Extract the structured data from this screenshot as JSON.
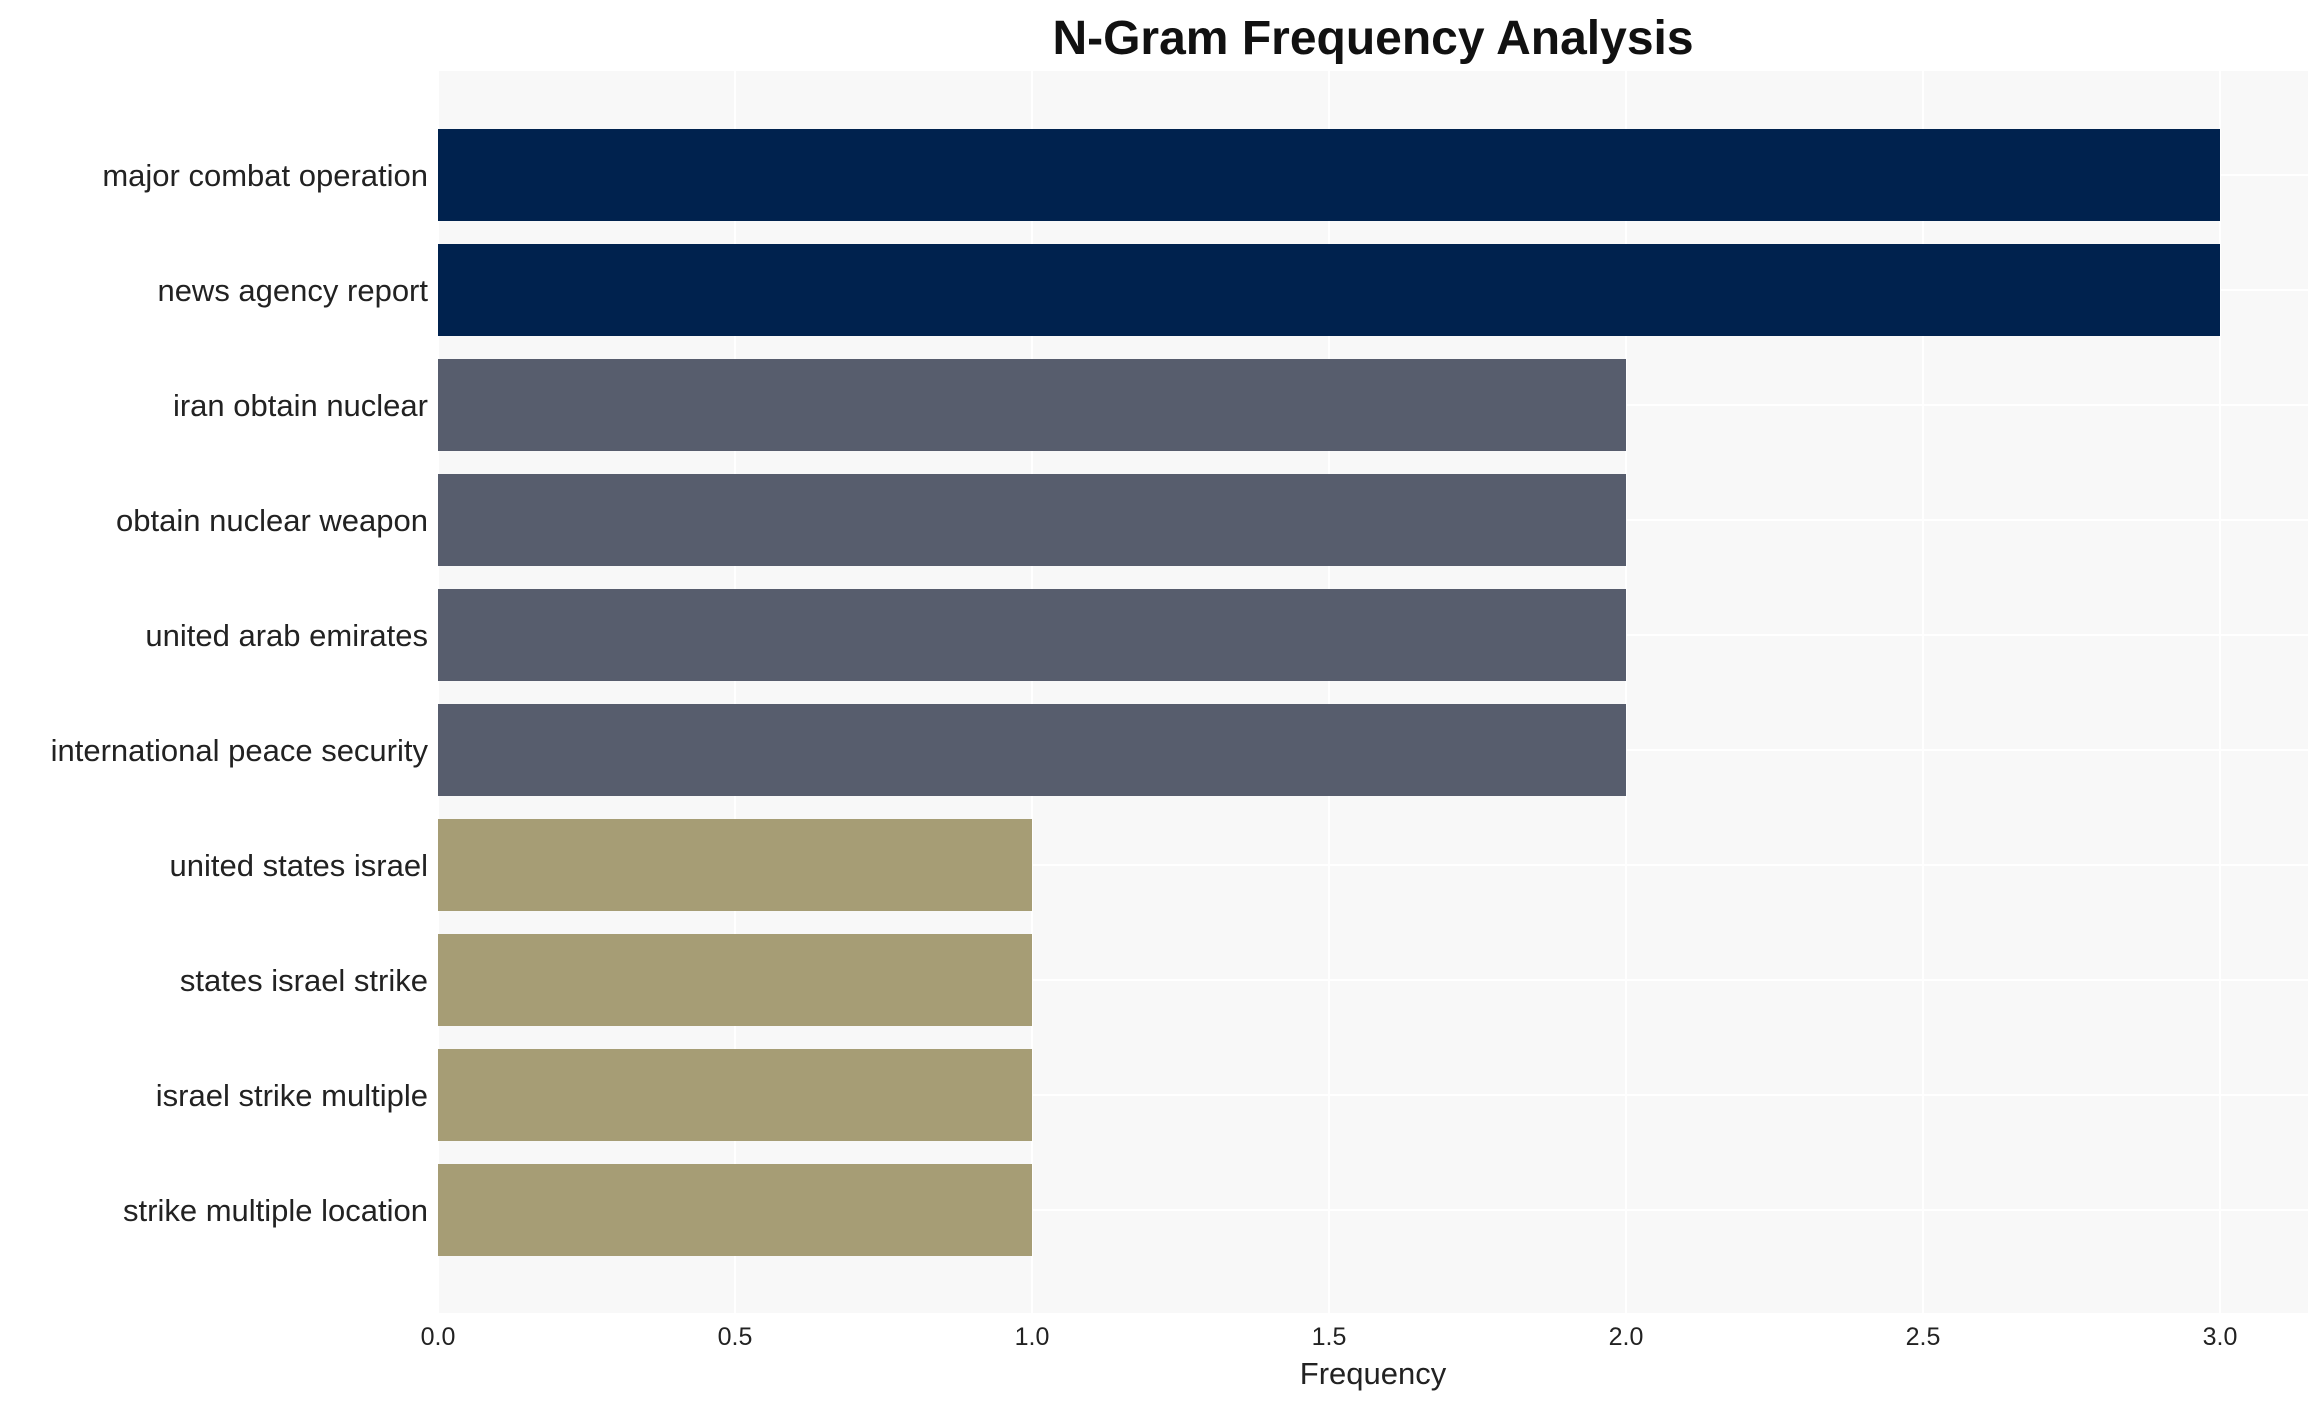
{
  "chart_data": {
    "type": "bar",
    "orientation": "horizontal",
    "title": "N-Gram Frequency Analysis",
    "xlabel": "Frequency",
    "ylabel": "",
    "xlim": [
      0,
      3.15
    ],
    "xticks": [
      "0.0",
      "0.5",
      "1.0",
      "1.5",
      "2.0",
      "2.5",
      "3.0"
    ],
    "grid": true,
    "categories": [
      "major combat operation",
      "news agency report",
      "iran obtain nuclear",
      "obtain nuclear weapon",
      "united arab emirates",
      "international peace security",
      "united states israel",
      "states israel strike",
      "israel strike multiple",
      "strike multiple location"
    ],
    "values": [
      3,
      3,
      2,
      2,
      2,
      2,
      1,
      1,
      1,
      1
    ],
    "colors": {
      "3": "#00224e",
      "2": "#575d6d",
      "1": "#a69d75"
    },
    "background": "#f8f8f8"
  }
}
